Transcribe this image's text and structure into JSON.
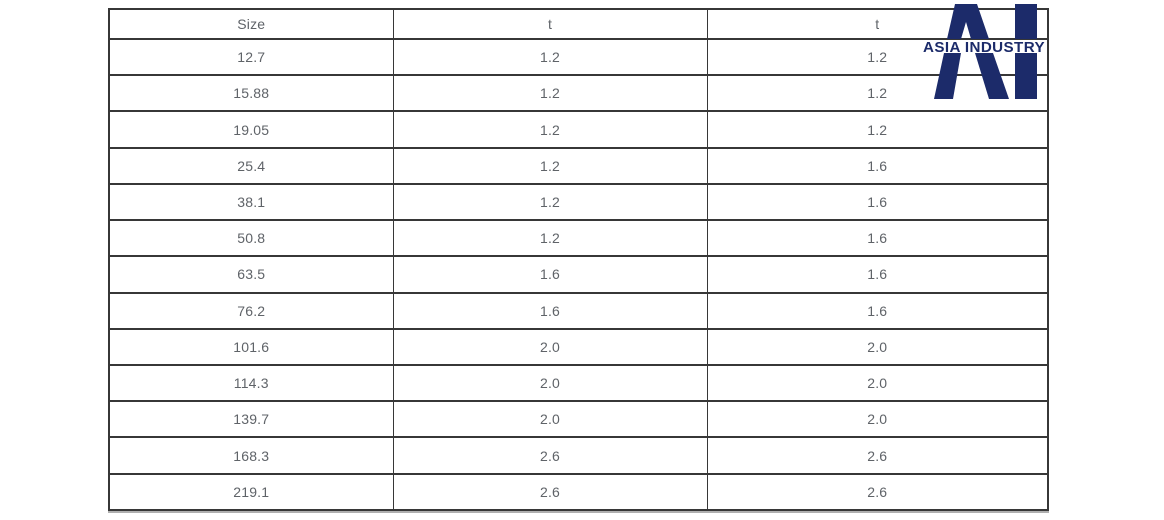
{
  "colors": {
    "accent": "#1c2b6a",
    "line": "#373737",
    "text": "#5f6368",
    "background": "#ffffff"
  },
  "logo": {
    "monogram": "AI",
    "text": "ASIA INDUSTRY"
  },
  "table": {
    "columns": [
      "Size",
      "t",
      "t"
    ],
    "rows": [
      [
        "12.7",
        "1.2",
        "1.2"
      ],
      [
        "15.88",
        "1.2",
        "1.2"
      ],
      [
        "19.05",
        "1.2",
        "1.2"
      ],
      [
        "25.4",
        "1.2",
        "1.6"
      ],
      [
        "38.1",
        "1.2",
        "1.6"
      ],
      [
        "50.8",
        "1.2",
        "1.6"
      ],
      [
        "63.5",
        "1.6",
        "1.6"
      ],
      [
        "76.2",
        "1.6",
        "1.6"
      ],
      [
        "101.6",
        "2.0",
        "2.0"
      ],
      [
        "114.3",
        "2.0",
        "2.0"
      ],
      [
        "139.7",
        "2.0",
        "2.0"
      ],
      [
        "168.3",
        "2.6",
        "2.6"
      ],
      [
        "219.1",
        "2.6",
        "2.6"
      ]
    ]
  }
}
